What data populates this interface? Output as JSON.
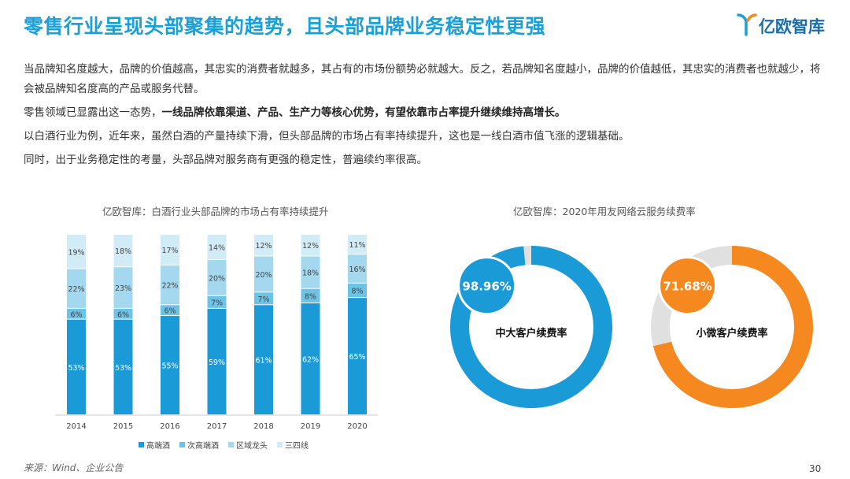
{
  "header": {
    "title": "零售行业呈现头部聚集的趋势，且头部品牌业务稳定性更强",
    "logo_text": "亿欧智库"
  },
  "body": {
    "p1": "当品牌知名度越大，品牌的价值越高，其忠实的消费者就越多，其占有的市场份额势必就越大。反之，若品牌知名度越小，品牌的价值越低，其忠实的消费者也就越少，将会被品牌知名度高的产品或服务代替。",
    "p2_start": "零售领域已显露出这一态势，",
    "p2_bold": "一线品牌依靠渠道、产品、生产力等核心优势，有望依靠市占率提升继续维持高增长。",
    "p3": "以白酒行业为例，近年来，虽然白酒的产量持续下滑，但头部品牌的市场占有率持续提升，这也是一线白酒市值飞涨的逻辑基础。",
    "p4": "同时，出于业务稳定性的考量，头部品牌对服务商有更强的稳定性，普遍续约率很高。"
  },
  "footer": {
    "source": "来源：Wind、企业公告",
    "page": "30"
  },
  "colors": {
    "title": "#1aa0d6",
    "gaoduan": "#1a9ad6",
    "cigaoduan": "#6cc3e6",
    "quyu": "#a3d8ee",
    "sansi": "#d2ecf7",
    "donut_blue": "#1a9ad6",
    "donut_orange": "#f5891f",
    "donut_track": "#e0e0e0"
  },
  "chart_data": [
    {
      "type": "bar",
      "stacked": true,
      "title": "亿欧智库：白酒行业头部品牌的市场占有率持续提升",
      "categories": [
        "2014",
        "2015",
        "2016",
        "2017",
        "2018",
        "2019",
        "2020"
      ],
      "series": [
        {
          "name": "高端酒",
          "values": [
            53,
            53,
            55,
            59,
            61,
            62,
            65
          ],
          "labels": [
            "53%",
            "53%",
            "55%",
            "59%",
            "61%",
            "62%",
            "65%"
          ]
        },
        {
          "name": "次高端酒",
          "values": [
            6,
            6,
            6,
            7,
            7,
            8,
            8
          ],
          "labels": [
            "6%",
            "6%",
            "6%",
            "7%",
            "7%",
            "8%",
            "8%"
          ]
        },
        {
          "name": "区域龙头",
          "values": [
            22,
            23,
            22,
            20,
            20,
            18,
            16
          ],
          "labels": [
            "22%",
            "23%",
            "22%",
            "20%",
            "20%",
            "18%",
            "16%"
          ]
        },
        {
          "name": "三四线",
          "values": [
            19,
            18,
            17,
            14,
            12,
            12,
            11
          ],
          "labels": [
            "19%",
            "18%",
            "17%",
            "14%",
            "12%",
            "12%",
            "11%"
          ]
        }
      ],
      "ylim": [
        0,
        100
      ],
      "legend": "bottom"
    },
    {
      "type": "pie",
      "variant": "donut",
      "title": "亿欧智库：2020年用友网络云服务续费率",
      "items": [
        {
          "label": "中大客户续费率",
          "value": 98.96,
          "value_label": "98.96%"
        },
        {
          "label": "小微客户续费率",
          "value": 71.68,
          "value_label": "71.68%"
        }
      ]
    }
  ]
}
